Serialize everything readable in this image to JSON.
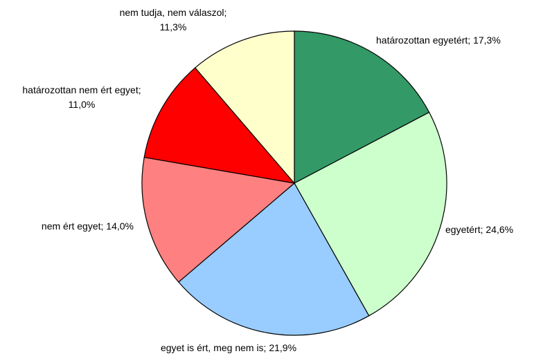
{
  "chart_data": {
    "type": "pie",
    "categories": [
      "határozottan egyetért;",
      "egyetért;",
      "egyet is ért, meg nem is;",
      "nem ért egyet;",
      "határozottan nem ért egyet;",
      "nem tudja, nem válaszol;"
    ],
    "values": [
      17.3,
      24.6,
      21.9,
      14.0,
      11.0,
      11.3
    ],
    "value_labels": [
      "17,3%",
      "24,6%",
      "21,9%",
      "14,0%",
      "11,0%",
      "11,3%"
    ],
    "colors": [
      "#339966",
      "#ccffcc",
      "#99ccff",
      "#ff8080",
      "#ff0000",
      "#ffffcc"
    ]
  }
}
